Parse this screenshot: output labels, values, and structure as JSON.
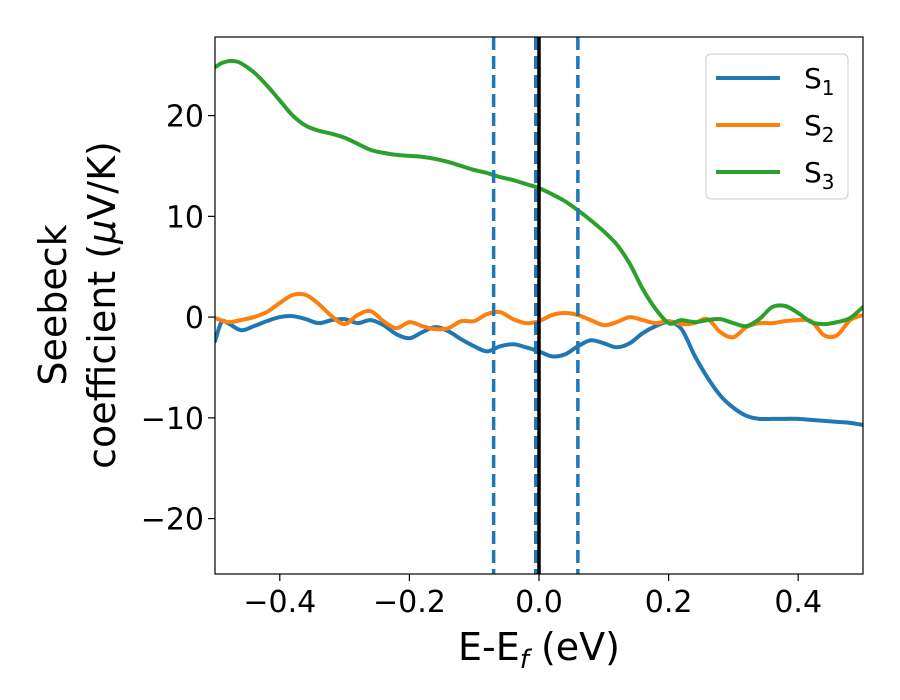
{
  "chart_data": {
    "type": "line",
    "title": "",
    "xlabel": "E-E",
    "xlabel_sub": "f",
    "xlabel_unit": " (eV)",
    "ylabel_line1": "Seebeck",
    "ylabel_line2": "coefficient  (",
    "ylabel_mu": "μ",
    "ylabel_unit_tail": "V/K)",
    "xlim": [
      -0.5,
      0.5
    ],
    "ylim": [
      -25.5,
      27.8
    ],
    "xticks": [
      -0.4,
      -0.2,
      0.0,
      0.2,
      0.4
    ],
    "xtick_labels": [
      "−0.4",
      "−0.2",
      "0.0",
      "0.2",
      "0.4"
    ],
    "yticks": [
      -20,
      -10,
      0,
      10,
      20
    ],
    "ytick_labels": [
      "−20",
      "−10",
      "0",
      "10",
      "20"
    ],
    "grid": false,
    "legend_position": "top-right",
    "vertical_lines": [
      {
        "x": -0.07,
        "style": "dashed",
        "color": "#1f77b4"
      },
      {
        "x": -0.005,
        "style": "dashed",
        "color": "#1f77b4"
      },
      {
        "x": 0.06,
        "style": "dashed",
        "color": "#1f77b4"
      },
      {
        "x": 0.0,
        "style": "solid",
        "color": "#000000"
      }
    ],
    "series": [
      {
        "name": "S",
        "subscript": "1",
        "color": "#1f77b4",
        "x": [
          -0.5,
          -0.49,
          -0.48,
          -0.46,
          -0.44,
          -0.42,
          -0.4,
          -0.38,
          -0.36,
          -0.34,
          -0.32,
          -0.3,
          -0.28,
          -0.26,
          -0.24,
          -0.22,
          -0.2,
          -0.18,
          -0.16,
          -0.14,
          -0.12,
          -0.1,
          -0.08,
          -0.06,
          -0.04,
          -0.02,
          0.0,
          0.02,
          0.04,
          0.06,
          0.08,
          0.1,
          0.12,
          0.14,
          0.16,
          0.18,
          0.2,
          0.22,
          0.24,
          0.26,
          0.28,
          0.3,
          0.32,
          0.34,
          0.36,
          0.38,
          0.4,
          0.42,
          0.44,
          0.46,
          0.48,
          0.5
        ],
        "y": [
          -2.4,
          -0.5,
          -0.6,
          -1.3,
          -0.9,
          -0.4,
          0.0,
          0.1,
          -0.2,
          -0.6,
          -0.3,
          -0.2,
          -0.6,
          -0.3,
          -0.8,
          -1.7,
          -2.1,
          -1.5,
          -1.0,
          -1.4,
          -2.2,
          -2.9,
          -3.4,
          -2.9,
          -2.7,
          -3.0,
          -3.4,
          -3.9,
          -3.7,
          -2.9,
          -2.3,
          -2.6,
          -3.0,
          -2.6,
          -1.6,
          -0.9,
          -0.5,
          -1.2,
          -3.8,
          -6.0,
          -7.8,
          -9.0,
          -9.8,
          -10.1,
          -10.1,
          -10.1,
          -10.1,
          -10.2,
          -10.3,
          -10.4,
          -10.5,
          -10.7
        ]
      },
      {
        "name": "S",
        "subscript": "2",
        "color": "#ff7f0e",
        "x": [
          -0.5,
          -0.48,
          -0.46,
          -0.44,
          -0.42,
          -0.4,
          -0.38,
          -0.36,
          -0.34,
          -0.32,
          -0.3,
          -0.28,
          -0.26,
          -0.24,
          -0.22,
          -0.2,
          -0.18,
          -0.16,
          -0.14,
          -0.12,
          -0.1,
          -0.08,
          -0.06,
          -0.04,
          -0.02,
          0.0,
          0.02,
          0.04,
          0.06,
          0.08,
          0.1,
          0.12,
          0.14,
          0.16,
          0.18,
          0.2,
          0.22,
          0.24,
          0.26,
          0.28,
          0.3,
          0.32,
          0.34,
          0.36,
          0.38,
          0.4,
          0.42,
          0.44,
          0.46,
          0.48,
          0.5
        ],
        "y": [
          -0.1,
          -0.5,
          -0.3,
          0.0,
          0.5,
          1.4,
          2.2,
          2.2,
          1.3,
          0.1,
          -0.7,
          0.2,
          0.6,
          -0.4,
          -1.1,
          -0.5,
          -0.9,
          -1.2,
          -1.1,
          -0.4,
          -0.4,
          0.3,
          0.5,
          -0.2,
          -0.6,
          -0.4,
          0.2,
          0.4,
          0.2,
          -0.3,
          -0.8,
          -0.5,
          0.0,
          -0.3,
          -0.6,
          -0.4,
          -0.7,
          -0.6,
          -0.2,
          -1.5,
          -2.0,
          -1.0,
          -0.6,
          -0.6,
          -0.4,
          -0.3,
          -0.4,
          -1.8,
          -1.8,
          -0.3,
          0.2
        ]
      },
      {
        "name": "S",
        "subscript": "3",
        "color": "#2ca02c",
        "x": [
          -0.5,
          -0.49,
          -0.48,
          -0.47,
          -0.46,
          -0.44,
          -0.42,
          -0.4,
          -0.38,
          -0.36,
          -0.34,
          -0.32,
          -0.3,
          -0.28,
          -0.26,
          -0.24,
          -0.22,
          -0.2,
          -0.18,
          -0.16,
          -0.14,
          -0.12,
          -0.1,
          -0.08,
          -0.06,
          -0.04,
          -0.02,
          0.0,
          0.02,
          0.04,
          0.06,
          0.08,
          0.1,
          0.12,
          0.14,
          0.16,
          0.18,
          0.2,
          0.21,
          0.22,
          0.24,
          0.26,
          0.28,
          0.3,
          0.32,
          0.34,
          0.36,
          0.38,
          0.4,
          0.42,
          0.44,
          0.46,
          0.48,
          0.5
        ],
        "y": [
          24.8,
          25.2,
          25.4,
          25.4,
          25.2,
          24.3,
          23.0,
          21.5,
          20.0,
          19.0,
          18.5,
          18.2,
          17.8,
          17.2,
          16.6,
          16.3,
          16.1,
          16.0,
          15.9,
          15.7,
          15.4,
          15.0,
          14.6,
          14.3,
          13.9,
          13.6,
          13.2,
          12.8,
          12.2,
          11.5,
          10.6,
          9.6,
          8.5,
          7.2,
          5.3,
          2.8,
          0.8,
          -0.6,
          -0.5,
          -0.3,
          -0.5,
          -0.3,
          -0.2,
          -0.6,
          -0.9,
          -0.2,
          1.0,
          1.1,
          0.4,
          -0.5,
          -0.7,
          -0.5,
          -0.1,
          1.0
        ]
      }
    ]
  }
}
